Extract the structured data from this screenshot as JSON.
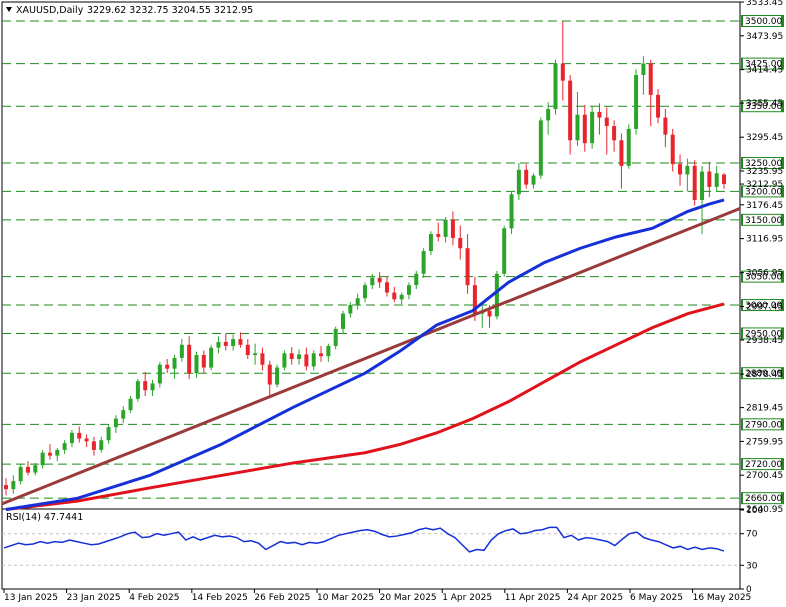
{
  "header": {
    "symbol": "XAUUSD,Daily",
    "ohlc": "3229.62 3232.75 3204.55 3212.95"
  },
  "colors": {
    "bull": "#2aa52a",
    "bear": "#e8242d",
    "level_line": "#1f8a1f",
    "ma_blue": "#1530d8",
    "ma_red": "#e0121b",
    "trend": "#9a3a3a",
    "rsi": "#1530d8"
  },
  "chart_data": [
    {
      "type": "candlestick",
      "title": "XAUUSD,Daily",
      "ylim": [
        2640.95,
        3533.45
      ],
      "y_tick_labels": [
        "3533.45",
        "3473.95",
        "3414.45",
        "3355.45",
        "3295.45",
        "3235.95",
        "3212.95",
        "3176.45",
        "3116.95",
        "3056.95",
        "2997.45",
        "2938.45",
        "2878.45",
        "2819.45",
        "2759.95",
        "2700.45",
        "2640.95"
      ],
      "x_tick_labels": [
        "13 Jan 2025",
        "23 Jan 2025",
        "4 Feb 2025",
        "14 Feb 2025",
        "26 Feb 2025",
        "10 Mar 2025",
        "20 Mar 2025",
        "1 Apr 2025",
        "11 Apr 2025",
        "24 Apr 2025",
        "6 May 2025",
        "16 May 2025"
      ],
      "horizontal_levels": [
        "3500.00",
        "3425.00",
        "3350.00",
        "3250.00",
        "3200.00",
        "3150.00",
        "3050.00",
        "3000.00",
        "2950.00",
        "2880.00",
        "2790.00",
        "2720.00",
        "2660.00"
      ],
      "grid": false,
      "candles": [
        [
          2683,
          2695,
          2665,
          2676
        ],
        [
          2676,
          2700,
          2668,
          2690
        ],
        [
          2690,
          2720,
          2684,
          2715
        ],
        [
          2715,
          2725,
          2700,
          2705
        ],
        [
          2705,
          2722,
          2700,
          2718
        ],
        [
          2718,
          2745,
          2712,
          2740
        ],
        [
          2740,
          2755,
          2728,
          2735
        ],
        [
          2735,
          2748,
          2725,
          2745
        ],
        [
          2745,
          2762,
          2738,
          2757
        ],
        [
          2757,
          2780,
          2750,
          2775
        ],
        [
          2775,
          2786,
          2758,
          2765
        ],
        [
          2765,
          2772,
          2750,
          2760
        ],
        [
          2760,
          2768,
          2735,
          2745
        ],
        [
          2745,
          2768,
          2740,
          2762
        ],
        [
          2762,
          2790,
          2756,
          2785
        ],
        [
          2785,
          2806,
          2775,
          2800
        ],
        [
          2800,
          2822,
          2792,
          2815
        ],
        [
          2815,
          2840,
          2810,
          2835
        ],
        [
          2835,
          2870,
          2830,
          2866
        ],
        [
          2866,
          2882,
          2840,
          2850
        ],
        [
          2850,
          2868,
          2840,
          2862
        ],
        [
          2862,
          2900,
          2855,
          2895
        ],
        [
          2895,
          2905,
          2880,
          2888
        ],
        [
          2888,
          2912,
          2870,
          2907
        ],
        [
          2907,
          2940,
          2900,
          2930
        ],
        [
          2930,
          2945,
          2870,
          2880
        ],
        [
          2880,
          2918,
          2872,
          2912
        ],
        [
          2912,
          2920,
          2880,
          2890
        ],
        [
          2890,
          2930,
          2885,
          2925
        ],
        [
          2925,
          2945,
          2915,
          2935
        ],
        [
          2935,
          2950,
          2920,
          2928
        ],
        [
          2928,
          2948,
          2920,
          2940
        ],
        [
          2940,
          2952,
          2925,
          2930
        ],
        [
          2930,
          2940,
          2905,
          2912
        ],
        [
          2912,
          2932,
          2895,
          2915
        ],
        [
          2915,
          2925,
          2885,
          2895
        ],
        [
          2895,
          2902,
          2840,
          2860
        ],
        [
          2860,
          2895,
          2855,
          2890
        ],
        [
          2890,
          2920,
          2885,
          2915
        ],
        [
          2915,
          2926,
          2895,
          2905
        ],
        [
          2905,
          2922,
          2895,
          2913
        ],
        [
          2913,
          2925,
          2885,
          2892
        ],
        [
          2892,
          2920,
          2885,
          2915
        ],
        [
          2915,
          2928,
          2900,
          2910
        ],
        [
          2910,
          2932,
          2900,
          2928
        ],
        [
          2928,
          2962,
          2922,
          2958
        ],
        [
          2958,
          2990,
          2950,
          2985
        ],
        [
          2985,
          3005,
          2978,
          3000
        ],
        [
          3000,
          3020,
          2992,
          3012
        ],
        [
          3012,
          3040,
          3005,
          3035
        ],
        [
          3035,
          3055,
          3028,
          3048
        ],
        [
          3048,
          3058,
          3030,
          3040
        ],
        [
          3040,
          3050,
          3015,
          3022
        ],
        [
          3022,
          3032,
          3005,
          3010
        ],
        [
          3010,
          3022,
          3002,
          3018
        ],
        [
          3018,
          3040,
          3010,
          3035
        ],
        [
          3035,
          3060,
          3028,
          3055
        ],
        [
          3055,
          3100,
          3048,
          3095
        ],
        [
          3095,
          3130,
          3088,
          3125
        ],
        [
          3125,
          3145,
          3112,
          3120
        ],
        [
          3120,
          3155,
          3110,
          3150
        ],
        [
          3150,
          3165,
          3105,
          3118
        ],
        [
          3118,
          3140,
          3080,
          3100
        ],
        [
          3100,
          3125,
          3020,
          3035
        ],
        [
          3035,
          3050,
          2972,
          2985
        ],
        [
          2985,
          3002,
          2960,
          2990
        ],
        [
          2990,
          3000,
          2960,
          2980
        ],
        [
          2980,
          3060,
          2975,
          3055
        ],
        [
          3055,
          3140,
          3050,
          3135
        ],
        [
          3135,
          3200,
          3125,
          3195
        ],
        [
          3195,
          3250,
          3185,
          3238
        ],
        [
          3238,
          3248,
          3205,
          3212
        ],
        [
          3212,
          3232,
          3205,
          3228
        ],
        [
          3228,
          3330,
          3222,
          3325
        ],
        [
          3325,
          3357,
          3300,
          3345
        ],
        [
          3345,
          3432,
          3335,
          3425
        ],
        [
          3425,
          3500,
          3360,
          3395
        ],
        [
          3395,
          3405,
          3265,
          3290
        ],
        [
          3290,
          3375,
          3280,
          3335
        ],
        [
          3335,
          3352,
          3270,
          3285
        ],
        [
          3285,
          3350,
          3275,
          3340
        ],
        [
          3340,
          3355,
          3300,
          3330
        ],
        [
          3330,
          3348,
          3265,
          3315
        ],
        [
          3315,
          3325,
          3270,
          3290
        ],
        [
          3290,
          3302,
          3205,
          3245
        ],
        [
          3245,
          3318,
          3240,
          3310
        ],
        [
          3310,
          3415,
          3300,
          3405
        ],
        [
          3405,
          3438,
          3370,
          3425
        ],
        [
          3425,
          3432,
          3315,
          3370
        ],
        [
          3370,
          3380,
          3320,
          3330
        ],
        [
          3330,
          3345,
          3278,
          3300
        ],
        [
          3300,
          3310,
          3235,
          3248
        ],
        [
          3248,
          3265,
          3210,
          3230
        ],
        [
          3230,
          3258,
          3200,
          3245
        ],
        [
          3245,
          3255,
          3175,
          3185
        ],
        [
          3185,
          3245,
          3125,
          3235
        ],
        [
          3235,
          3252,
          3190,
          3208
        ],
        [
          3208,
          3245,
          3200,
          3232
        ],
        [
          3229.62,
          3232.75,
          3204.55,
          3212.95
        ]
      ],
      "ma_blue_points": [
        [
          0,
          2640
        ],
        [
          10,
          2660
        ],
        [
          20,
          2700
        ],
        [
          30,
          2755
        ],
        [
          40,
          2820
        ],
        [
          50,
          2880
        ],
        [
          55,
          2920
        ],
        [
          60,
          2965
        ],
        [
          65,
          2990
        ],
        [
          70,
          3040
        ],
        [
          75,
          3075
        ],
        [
          80,
          3100
        ],
        [
          85,
          3120
        ],
        [
          90,
          3135
        ],
        [
          95,
          3165
        ],
        [
          98,
          3178
        ],
        [
          100,
          3185
        ]
      ],
      "ma_red_points": [
        [
          0,
          2640
        ],
        [
          10,
          2655
        ],
        [
          20,
          2678
        ],
        [
          30,
          2700
        ],
        [
          40,
          2722
        ],
        [
          50,
          2740
        ],
        [
          55,
          2755
        ],
        [
          60,
          2775
        ],
        [
          65,
          2800
        ],
        [
          70,
          2830
        ],
        [
          75,
          2865
        ],
        [
          80,
          2900
        ],
        [
          85,
          2930
        ],
        [
          90,
          2960
        ],
        [
          95,
          2985
        ],
        [
          100,
          3002
        ]
      ],
      "trendline": [
        [
          0,
          2650
        ],
        [
          100,
          3170
        ]
      ]
    },
    {
      "type": "line",
      "title": "RSI(14) 47.7441",
      "ylim": [
        0,
        100
      ],
      "y_tick_labels": [
        "100",
        "70",
        "30",
        "0"
      ],
      "levels": [
        70,
        30
      ],
      "rsi_values": [
        52,
        55,
        58,
        56,
        57,
        60,
        58,
        60,
        59,
        62,
        60,
        58,
        56,
        57,
        60,
        63,
        66,
        70,
        72,
        65,
        66,
        70,
        68,
        70,
        72,
        62,
        66,
        62,
        65,
        68,
        66,
        67,
        65,
        60,
        61,
        58,
        50,
        55,
        60,
        58,
        59,
        56,
        59,
        58,
        60,
        64,
        68,
        70,
        72,
        74,
        75,
        73,
        69,
        66,
        67,
        69,
        71,
        75,
        77,
        75,
        77,
        70,
        65,
        56,
        47,
        50,
        49,
        62,
        70,
        74,
        76,
        70,
        71,
        74,
        75,
        78,
        78,
        65,
        68,
        62,
        65,
        64,
        62,
        60,
        55,
        63,
        70,
        72,
        65,
        62,
        60,
        56,
        52,
        54,
        50,
        53,
        50,
        52,
        51,
        48
      ]
    }
  ]
}
